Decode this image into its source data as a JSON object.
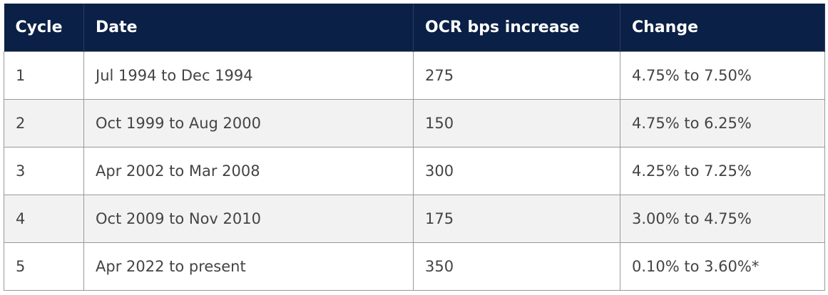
{
  "table": {
    "header": [
      "Cycle",
      "Date",
      "OCR bps increase",
      "Change"
    ],
    "rows": [
      [
        "1",
        "Jul 1994 to Dec 1994",
        "275",
        "4.75% to 7.50%"
      ],
      [
        "2",
        "Oct 1999 to Aug 2000",
        "150",
        "4.75% to 6.25%"
      ],
      [
        "3",
        "Apr 2002 to Mar 2008",
        "300",
        "4.25% to 7.25%"
      ],
      [
        "4",
        "Oct 2009 to Nov 2010",
        "175",
        "3.00% to 4.75%"
      ],
      [
        "5",
        "Apr 2022 to present",
        "350",
        "0.10% to 3.60%*"
      ]
    ]
  }
}
